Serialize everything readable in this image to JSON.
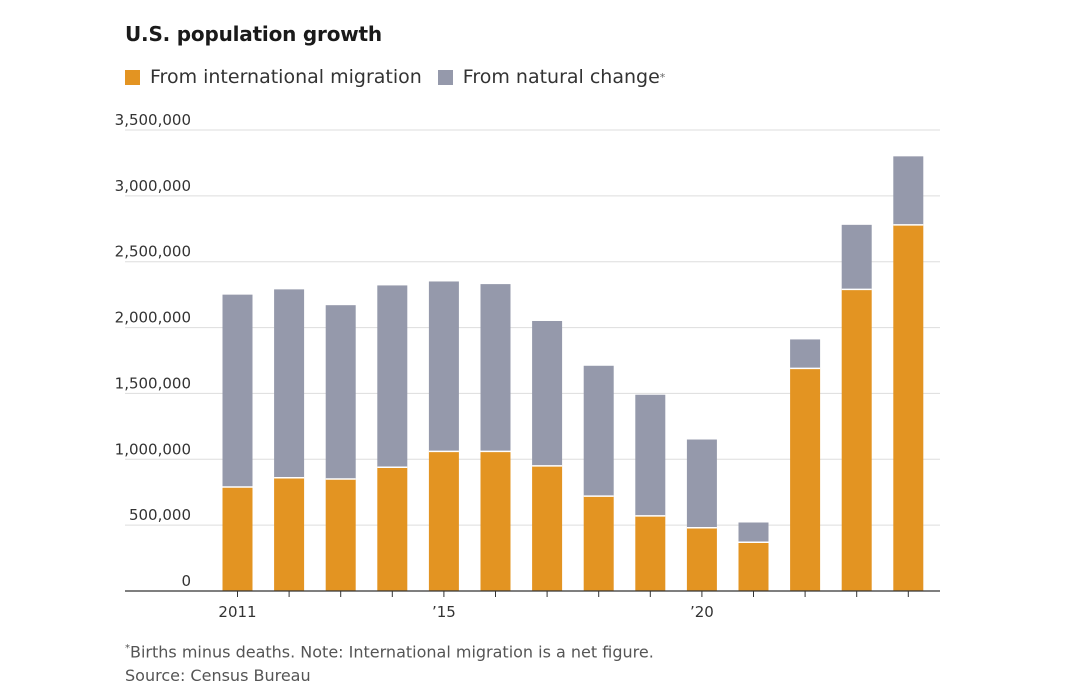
{
  "chart_data": {
    "type": "bar",
    "stacked": true,
    "title": "U.S. population growth",
    "categories": [
      "2011",
      "2012",
      "2013",
      "2014",
      "2015",
      "2016",
      "2017",
      "2018",
      "2019",
      "2020",
      "2021",
      "2022",
      "2023",
      "2024"
    ],
    "x_tick_labels": [
      {
        "category": "2011",
        "label": "2011"
      },
      {
        "category": "2015",
        "label": "’15"
      },
      {
        "category": "2020",
        "label": "’20"
      }
    ],
    "series": [
      {
        "name": "From international migration",
        "color": "#e39422",
        "values": [
          790000,
          860000,
          850000,
          940000,
          1060000,
          1060000,
          950000,
          720000,
          570000,
          480000,
          370000,
          1690000,
          2290000,
          2780000
        ]
      },
      {
        "name": "From natural change",
        "marker": "*",
        "color": "#9599ab",
        "values": [
          1460000,
          1430000,
          1320000,
          1380000,
          1290000,
          1270000,
          1100000,
          990000,
          920000,
          670000,
          150000,
          220000,
          490000,
          520000
        ]
      }
    ],
    "y_ticks": [
      "0",
      "500,000",
      "1,000,000",
      "1,500,000",
      "2,000,000",
      "2,500,000",
      "3,000,000",
      "3,500,000"
    ],
    "ylim": [
      0,
      3500000
    ],
    "grid": true,
    "legend": "top-left",
    "xlabel": "",
    "ylabel": ""
  },
  "footnote": {
    "marker": "*",
    "text": "Births minus deaths. Note: International migration is a net figure.",
    "source": "Source: Census Bureau"
  }
}
